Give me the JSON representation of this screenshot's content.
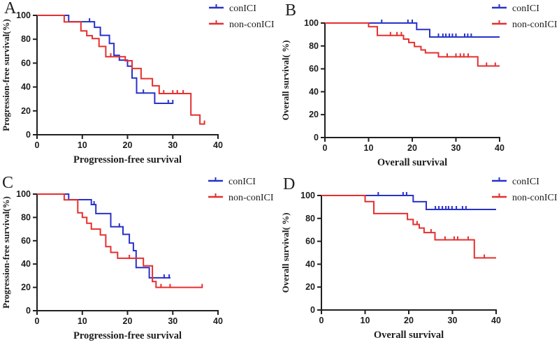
{
  "figure": {
    "background": "#ffffff",
    "colors": {
      "axis": "#1f1f1f",
      "text": "#1c1c1c",
      "conICI": "#2832c8",
      "non_conICI": "#e62f2f"
    },
    "panel_letters": [
      "A",
      "B",
      "C",
      "D"
    ],
    "legend": {
      "entries": [
        {
          "label": "conICI",
          "color": "#2832c8"
        },
        {
          "label": "non-conICI",
          "color": "#e62f2f"
        }
      ],
      "position": "top-right"
    }
  },
  "chart_data": [
    {
      "panel": "A",
      "type": "line",
      "subtype": "kaplan-meier-step",
      "title": "",
      "xlabel": "Progression-free survival",
      "ylabel": "Progression-free survival(%)",
      "xlim": [
        0,
        40
      ],
      "ylim": [
        0,
        100
      ],
      "xticks": [
        0,
        10,
        20,
        30,
        40
      ],
      "yticks": [
        0,
        20,
        40,
        60,
        80,
        100
      ],
      "grid": false,
      "legend_position": "top-right",
      "series": [
        {
          "name": "conICI",
          "color": "#2832c8",
          "start": 100,
          "steps": [
            [
              7,
              94.7
            ],
            [
              12.7,
              90
            ],
            [
              14,
              83.3
            ],
            [
              16,
              76.5
            ],
            [
              17,
              66.5
            ],
            [
              18.2,
              62.5
            ],
            [
              20,
              57.5
            ],
            [
              21,
              47.5
            ],
            [
              22,
              35
            ],
            [
              26,
              26.3
            ]
          ],
          "end_x": 30,
          "censors": [
            [
              11.6,
              94.7
            ],
            [
              23.5,
              35
            ],
            [
              29,
              26.3
            ],
            [
              30,
              26.3
            ]
          ]
        },
        {
          "name": "non-conICI",
          "color": "#e62f2f",
          "start": 100,
          "steps": [
            [
              6,
              94.5
            ],
            [
              9.7,
              87
            ],
            [
              11,
              83
            ],
            [
              12.2,
              80.5
            ],
            [
              13.7,
              74
            ],
            [
              15.2,
              65.4
            ],
            [
              19.5,
              62
            ],
            [
              21,
              55.5
            ],
            [
              23,
              47
            ],
            [
              25.5,
              41
            ],
            [
              27,
              34.5
            ],
            [
              34,
              16.5
            ],
            [
              36,
              9
            ]
          ],
          "end_x": 37,
          "censors": [
            [
              16.3,
              65.4
            ],
            [
              28,
              34.5
            ],
            [
              30,
              34.5
            ],
            [
              31,
              34.5
            ],
            [
              32.3,
              34.5
            ],
            [
              37,
              9
            ]
          ]
        }
      ]
    },
    {
      "panel": "B",
      "type": "line",
      "subtype": "kaplan-meier-step",
      "title": "",
      "xlabel": "Overall survival",
      "ylabel": "Overall survival( %)",
      "xlim": [
        0,
        40
      ],
      "ylim": [
        0,
        100
      ],
      "xticks": [
        0,
        10,
        20,
        30,
        40
      ],
      "yticks": [
        0,
        20,
        40,
        60,
        80,
        100
      ],
      "grid": false,
      "legend_position": "top-right",
      "series": [
        {
          "name": "conICI",
          "color": "#2832c8",
          "start": 100,
          "steps": [
            [
              21,
              94.4
            ],
            [
              24,
              87.8
            ]
          ],
          "end_x": 40,
          "censors": [
            [
              13,
              100
            ],
            [
              19,
              100
            ],
            [
              20,
              100
            ],
            [
              26,
              87.8
            ],
            [
              27,
              87.8
            ],
            [
              27.7,
              87.8
            ],
            [
              28.5,
              87.8
            ],
            [
              29.2,
              87.8
            ],
            [
              30,
              87.8
            ],
            [
              32,
              87.8
            ],
            [
              32.7,
              87.8
            ],
            [
              33.5,
              87.8
            ]
          ]
        },
        {
          "name": "non-conICI",
          "color": "#e62f2f",
          "start": 100,
          "steps": [
            [
              10,
              96.8
            ],
            [
              12,
              89.2
            ],
            [
              18,
              86
            ],
            [
              19.2,
              83
            ],
            [
              20.5,
              79.5
            ],
            [
              22,
              76.5
            ],
            [
              23,
              74
            ],
            [
              26,
              70.5
            ],
            [
              35,
              62.5
            ]
          ],
          "end_x": 40,
          "censors": [
            [
              15,
              89.2
            ],
            [
              16.5,
              89.2
            ],
            [
              17.5,
              89.2
            ],
            [
              28,
              70.5
            ],
            [
              30,
              70.5
            ],
            [
              31,
              70.5
            ],
            [
              31.8,
              70.5
            ],
            [
              32.8,
              70.5
            ],
            [
              37,
              62.5
            ],
            [
              39,
              62.5
            ]
          ]
        }
      ]
    },
    {
      "panel": "C",
      "type": "line",
      "subtype": "kaplan-meier-step",
      "title": "",
      "xlabel": "Progression-free survival",
      "ylabel": "Progression-free survival(%)",
      "xlim": [
        0,
        40
      ],
      "ylim": [
        0,
        100
      ],
      "xticks": [
        0,
        10,
        20,
        30,
        40
      ],
      "yticks": [
        0,
        20,
        40,
        60,
        80,
        100
      ],
      "grid": false,
      "legend_position": "top-right",
      "series": [
        {
          "name": "conICI",
          "color": "#2832c8",
          "start": 100,
          "steps": [
            [
              7,
              95.2
            ],
            [
              12,
              91
            ],
            [
              13,
              83.3
            ],
            [
              16.3,
              72
            ],
            [
              19,
              65.5
            ],
            [
              20.4,
              58
            ],
            [
              21.3,
              51.5
            ],
            [
              21.9,
              37
            ],
            [
              24.8,
              28.2
            ]
          ],
          "end_x": 29.5,
          "censors": [
            [
              12.6,
              91
            ],
            [
              18.2,
              72
            ],
            [
              28.1,
              28.2
            ],
            [
              29.2,
              28.2
            ]
          ]
        },
        {
          "name": "non-conICI",
          "color": "#e62f2f",
          "start": 100,
          "steps": [
            [
              6,
              95
            ],
            [
              9,
              84
            ],
            [
              10,
              80
            ],
            [
              11,
              75
            ],
            [
              12,
              70
            ],
            [
              14,
              65
            ],
            [
              15.2,
              55
            ],
            [
              16.3,
              50
            ],
            [
              17.8,
              45
            ],
            [
              23.5,
              38.5
            ],
            [
              25.5,
              25
            ],
            [
              26.3,
              20
            ]
          ],
          "end_x": 36.6,
          "censors": [
            [
              20.4,
              45
            ],
            [
              27.4,
              20
            ],
            [
              29.4,
              20
            ],
            [
              36.5,
              20
            ]
          ]
        }
      ]
    },
    {
      "panel": "D",
      "type": "line",
      "subtype": "kaplan-meier-step",
      "title": "",
      "xlabel": "Overall survival",
      "ylabel": "Overall survival( %)",
      "xlim": [
        0,
        40
      ],
      "ylim": [
        0,
        100
      ],
      "xticks": [
        0,
        10,
        20,
        30,
        40
      ],
      "yticks": [
        0,
        20,
        40,
        60,
        80,
        100
      ],
      "grid": false,
      "legend_position": "top-right",
      "series": [
        {
          "name": "conICI",
          "color": "#2832c8",
          "start": 100,
          "steps": [
            [
              21,
              94.6
            ],
            [
              24,
              87.8
            ]
          ],
          "end_x": 40,
          "censors": [
            [
              13,
              100
            ],
            [
              18.7,
              100
            ],
            [
              19.5,
              100
            ],
            [
              26.1,
              87.8
            ],
            [
              26.9,
              87.8
            ],
            [
              27.7,
              87.8
            ],
            [
              28.5,
              87.8
            ],
            [
              29.1,
              87.8
            ],
            [
              29.9,
              87.8
            ],
            [
              30.9,
              87.8
            ],
            [
              32.3,
              87.8
            ],
            [
              33.1,
              87.8
            ]
          ]
        },
        {
          "name": "non-conICI",
          "color": "#e62f2f",
          "start": 100,
          "steps": [
            [
              10,
              94.7
            ],
            [
              12,
              84.2
            ],
            [
              19.7,
              79
            ],
            [
              21,
              74.7
            ],
            [
              22.4,
              71.6
            ],
            [
              23.5,
              67.6
            ],
            [
              26,
              61.3
            ],
            [
              35,
              45.5
            ]
          ],
          "end_x": 40,
          "censors": [
            [
              21.9,
              74.7
            ],
            [
              25.1,
              67.6
            ],
            [
              28.3,
              61.3
            ],
            [
              30.4,
              61.3
            ],
            [
              31.2,
              61.3
            ],
            [
              33.6,
              61.3
            ],
            [
              37.3,
              45.5
            ]
          ]
        }
      ]
    }
  ]
}
